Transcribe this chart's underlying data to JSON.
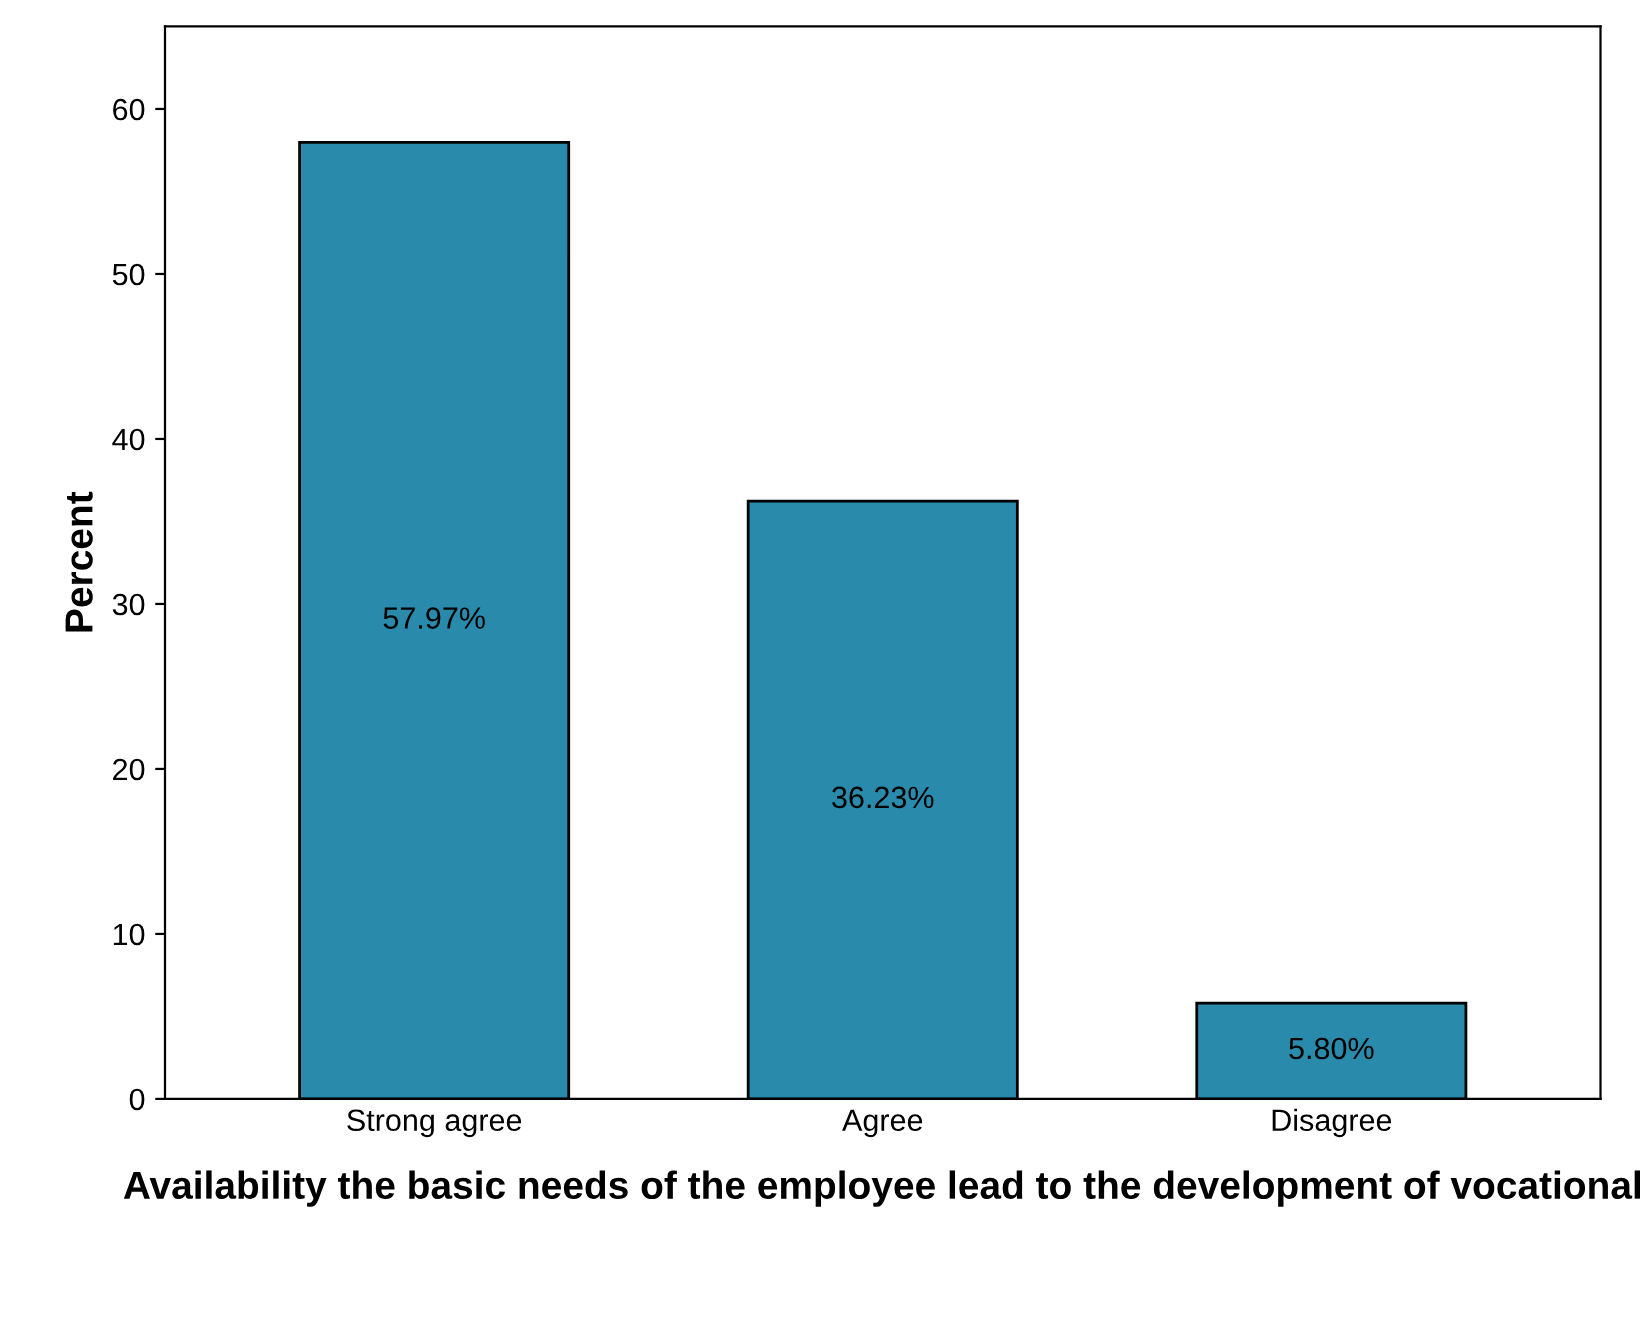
{
  "chart_data": {
    "type": "bar",
    "xlabel": "Availability the basic needs of the employee lead to the development of vocational",
    "ylabel": "Percent",
    "categories": [
      "Strong agree",
      "Agree",
      "Disagree"
    ],
    "values": [
      57.97,
      36.23,
      5.8
    ],
    "value_labels": [
      "57.97%",
      "36.23%",
      "5.80%"
    ],
    "color": "#2a8aab",
    "ylim": [
      0,
      65
    ],
    "yticks": [
      0,
      10,
      20,
      30,
      40,
      50,
      60
    ],
    "grid": false,
    "legend": false
  }
}
